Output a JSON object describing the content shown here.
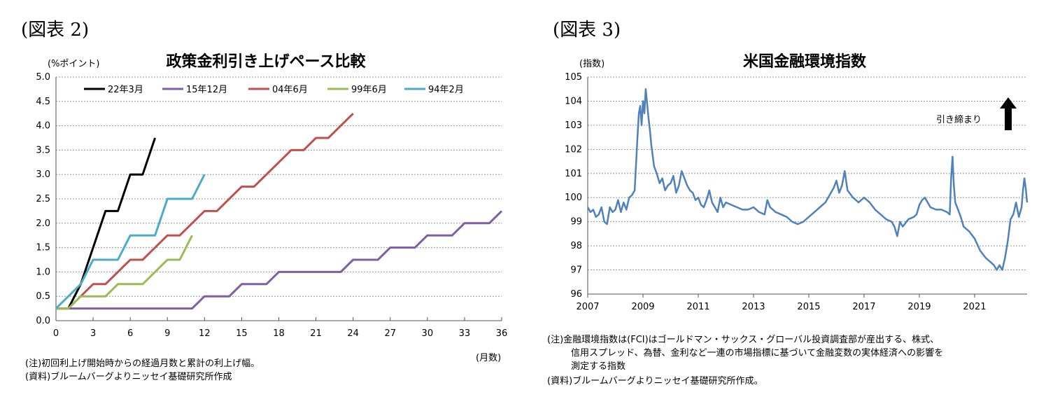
{
  "left": {
    "fig_label": "(図表 2)",
    "unit_label": "(%ポイント)",
    "xunit_label": "(月数)",
    "notes": [
      "(注)初回利上げ開始時からの経過月数と累計の利上げ幅。",
      "(資料)ブルームバーグよりニッセイ基礎研究所作成"
    ]
  },
  "right": {
    "fig_label": "(図表 3)",
    "unit_label": "(指数)",
    "annotation": "引き締まり",
    "arrow": "up-arrow",
    "notes": [
      "(注)金融環境指数は(FCI)はゴールドマン・サックス・グローバル投資調査部が産出する、株式、",
      "信用スプレッド、為替、金利など一連の市場指標に基づいて金融変数の実体経済への影響を",
      "測定する指数",
      "(資料)ブルームバーグよりニッセイ基礎研究所作成。"
    ]
  },
  "colors": {
    "black": "#000000",
    "purple": "#7F5FA4",
    "red": "#C0504D",
    "green": "#9BBB59",
    "teal": "#4BACC6",
    "blue": "#4F81BD",
    "grid": "#9a9a9a"
  },
  "chart_data": [
    {
      "type": "line",
      "title": "政策金利引き上げペース比較",
      "xlabel": "(月数)",
      "ylabel": "(%ポイント)",
      "xlim": [
        0,
        36
      ],
      "ylim": [
        0,
        5
      ],
      "xticks": [
        0,
        3,
        6,
        9,
        12,
        15,
        18,
        21,
        24,
        27,
        30,
        33,
        36
      ],
      "yticks": [
        "0.0",
        "0.5",
        "1.0",
        "1.5",
        "2.0",
        "2.5",
        "3.0",
        "3.5",
        "4.0",
        "4.5",
        "5.0"
      ],
      "grid": true,
      "legend": "top",
      "series": [
        {
          "name": "22年3月",
          "color": "#000000",
          "x": [
            1,
            2,
            3,
            4,
            5,
            6,
            7,
            8
          ],
          "y": [
            0.25,
            0.75,
            1.5,
            2.25,
            2.25,
            3.0,
            3.0,
            3.75
          ]
        },
        {
          "name": "15年12月",
          "color": "#7F5FA4",
          "x": [
            0,
            11,
            12,
            13,
            14,
            15,
            16,
            17,
            18,
            19,
            20,
            21,
            22,
            23,
            24,
            25,
            26,
            27,
            28,
            29,
            30,
            31,
            32,
            33,
            34,
            35,
            36
          ],
          "y": [
            0.25,
            0.25,
            0.5,
            0.5,
            0.5,
            0.75,
            0.75,
            0.75,
            1.0,
            1.0,
            1.0,
            1.0,
            1.0,
            1.0,
            1.25,
            1.25,
            1.25,
            1.5,
            1.5,
            1.5,
            1.75,
            1.75,
            1.75,
            2.0,
            2.0,
            2.0,
            2.25
          ]
        },
        {
          "name": "04年6月",
          "color": "#C0504D",
          "x": [
            0,
            1,
            2,
            3,
            4,
            5,
            6,
            7,
            8,
            9,
            10,
            11,
            12,
            13,
            14,
            15,
            16,
            17,
            18,
            19,
            20,
            21,
            22,
            23,
            24
          ],
          "y": [
            0.25,
            0.25,
            0.5,
            0.75,
            0.75,
            1.0,
            1.25,
            1.25,
            1.5,
            1.75,
            1.75,
            2.0,
            2.25,
            2.25,
            2.5,
            2.75,
            2.75,
            3.0,
            3.25,
            3.5,
            3.5,
            3.75,
            3.75,
            4.0,
            4.25
          ]
        },
        {
          "name": "99年6月",
          "color": "#9BBB59",
          "x": [
            0,
            1,
            2,
            3,
            4,
            5,
            6,
            7,
            8,
            9,
            10,
            11
          ],
          "y": [
            0.25,
            0.25,
            0.5,
            0.5,
            0.5,
            0.75,
            0.75,
            0.75,
            1.0,
            1.25,
            1.25,
            1.75
          ]
        },
        {
          "name": "94年2月",
          "color": "#4BACC6",
          "x": [
            0,
            1,
            2,
            3,
            4,
            5,
            6,
            7,
            8,
            9,
            10,
            11,
            12
          ],
          "y": [
            0.25,
            0.5,
            0.75,
            1.25,
            1.25,
            1.25,
            1.75,
            1.75,
            1.75,
            2.5,
            2.5,
            2.5,
            3.0
          ]
        }
      ]
    },
    {
      "type": "line",
      "title": "米国金融環境指数",
      "ylabel": "(指数)",
      "xlim": [
        2007,
        2022.9
      ],
      "ylim": [
        96,
        105
      ],
      "xticks": [
        2007,
        2009,
        2011,
        2013,
        2015,
        2017,
        2019,
        2021
      ],
      "yticks": [
        "96",
        "97",
        "98",
        "99",
        "100",
        "101",
        "102",
        "103",
        "104",
        "105"
      ],
      "grid": true,
      "series": [
        {
          "name": "FCI",
          "color": "#4F81BD",
          "x": [
            2007.0,
            2007.1,
            2007.2,
            2007.3,
            2007.4,
            2007.5,
            2007.6,
            2007.7,
            2007.8,
            2007.9,
            2008.0,
            2008.1,
            2008.2,
            2008.3,
            2008.4,
            2008.5,
            2008.6,
            2008.7,
            2008.8,
            2008.85,
            2008.9,
            2008.95,
            2009.0,
            2009.05,
            2009.1,
            2009.15,
            2009.2,
            2009.25,
            2009.3,
            2009.4,
            2009.5,
            2009.6,
            2009.7,
            2009.8,
            2009.9,
            2010.0,
            2010.1,
            2010.2,
            2010.3,
            2010.4,
            2010.5,
            2010.6,
            2010.7,
            2010.8,
            2010.9,
            2011.0,
            2011.1,
            2011.2,
            2011.3,
            2011.4,
            2011.5,
            2011.6,
            2011.7,
            2011.8,
            2011.9,
            2012.0,
            2012.2,
            2012.4,
            2012.6,
            2012.8,
            2013.0,
            2013.2,
            2013.4,
            2013.5,
            2013.6,
            2013.8,
            2014.0,
            2014.2,
            2014.4,
            2014.6,
            2014.8,
            2015.0,
            2015.2,
            2015.4,
            2015.6,
            2015.8,
            2015.9,
            2016.0,
            2016.1,
            2016.2,
            2016.3,
            2016.4,
            2016.6,
            2016.8,
            2017.0,
            2017.2,
            2017.4,
            2017.6,
            2017.8,
            2018.0,
            2018.1,
            2018.2,
            2018.3,
            2018.4,
            2018.6,
            2018.8,
            2018.9,
            2019.0,
            2019.1,
            2019.2,
            2019.4,
            2019.6,
            2019.8,
            2020.0,
            2020.1,
            2020.15,
            2020.2,
            2020.25,
            2020.3,
            2020.4,
            2020.5,
            2020.6,
            2020.8,
            2021.0,
            2021.2,
            2021.4,
            2021.6,
            2021.7,
            2021.8,
            2021.9,
            2022.0,
            2022.1,
            2022.2,
            2022.3,
            2022.4,
            2022.5,
            2022.6,
            2022.7,
            2022.75,
            2022.8,
            2022.85,
            2022.9
          ],
          "y": [
            99.6,
            99.4,
            99.5,
            99.2,
            99.3,
            99.6,
            99.0,
            98.9,
            99.6,
            99.4,
            99.5,
            99.9,
            99.4,
            99.8,
            99.5,
            100.0,
            100.1,
            100.3,
            102.5,
            103.5,
            103.8,
            103.0,
            104.0,
            103.5,
            104.5,
            103.9,
            103.3,
            102.8,
            102.2,
            101.3,
            101.0,
            100.6,
            100.8,
            100.3,
            100.5,
            100.6,
            100.9,
            100.2,
            100.5,
            101.1,
            100.8,
            100.5,
            100.3,
            100.2,
            99.9,
            100.0,
            99.7,
            99.6,
            99.9,
            100.3,
            99.8,
            99.6,
            99.4,
            100.0,
            99.6,
            99.8,
            99.7,
            99.6,
            99.5,
            99.5,
            99.6,
            99.4,
            99.3,
            99.9,
            99.6,
            99.4,
            99.3,
            99.2,
            99.0,
            98.9,
            99.0,
            99.2,
            99.4,
            99.6,
            99.8,
            100.2,
            100.4,
            100.7,
            100.2,
            100.5,
            101.1,
            100.3,
            100.0,
            99.8,
            100.0,
            99.8,
            99.5,
            99.3,
            99.1,
            99.0,
            98.8,
            98.4,
            99.0,
            98.8,
            99.1,
            99.2,
            99.3,
            99.7,
            99.9,
            100.0,
            99.6,
            99.5,
            99.5,
            99.4,
            99.3,
            100.8,
            101.7,
            100.5,
            99.8,
            99.5,
            99.2,
            98.8,
            98.6,
            98.3,
            97.8,
            97.5,
            97.3,
            97.2,
            97.0,
            97.2,
            97.0,
            97.5,
            98.2,
            99.1,
            99.3,
            99.8,
            99.2,
            99.6,
            100.3,
            100.8,
            100.4,
            99.8
          ]
        }
      ]
    }
  ]
}
